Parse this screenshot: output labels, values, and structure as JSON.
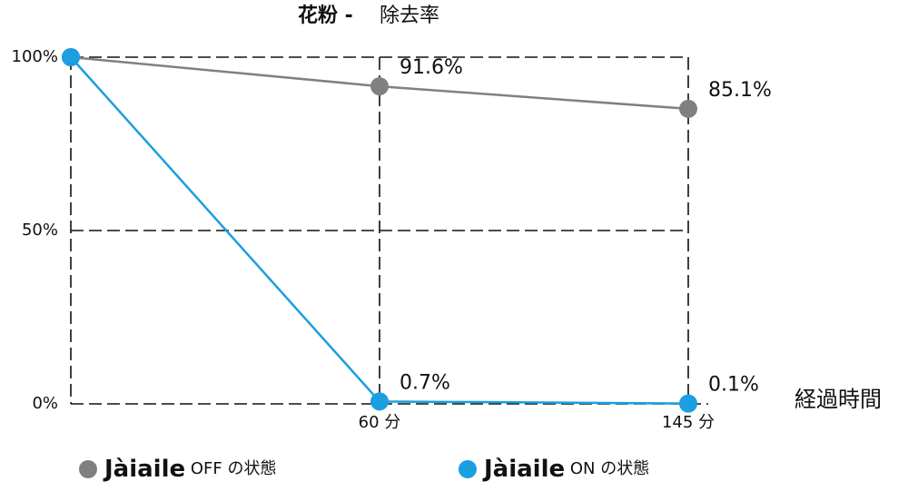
{
  "chart_data": {
    "type": "line",
    "title": {
      "highlight": "花粉 -",
      "text": "除去率"
    },
    "title_color": "#2a8a8c",
    "categories": [
      null,
      "60 分",
      "145 分"
    ],
    "x_label": "経過時間",
    "ylim": [
      0,
      100
    ],
    "yticks": [
      {
        "value": 0,
        "label": "0%"
      },
      {
        "value": 50,
        "label": "50%"
      },
      {
        "value": 100,
        "label": "100%"
      }
    ],
    "grid": true,
    "series": [
      {
        "name": "Jàiaile OFF の状態",
        "color": "#808080",
        "values": [
          100,
          91.6,
          85.1
        ],
        "value_labels": [
          null,
          "91.6%",
          "85.1%"
        ]
      },
      {
        "name": "Jàiaile ON の状態",
        "color": "#1a9fe0",
        "values": [
          100,
          0.7,
          0.1
        ],
        "value_labels": [
          null,
          "0.7%",
          "0.1%"
        ]
      }
    ]
  }
}
